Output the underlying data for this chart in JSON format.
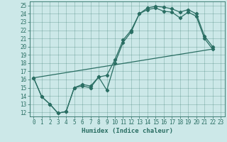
{
  "title": "",
  "xlabel": "Humidex (Indice chaleur)",
  "xlim": [
    -0.5,
    23.5
  ],
  "ylim": [
    11.5,
    25.5
  ],
  "xticks": [
    0,
    1,
    2,
    3,
    4,
    5,
    6,
    7,
    8,
    9,
    10,
    11,
    12,
    13,
    14,
    15,
    16,
    17,
    18,
    19,
    20,
    21,
    22,
    23
  ],
  "yticks": [
    12,
    13,
    14,
    15,
    16,
    17,
    18,
    19,
    20,
    21,
    22,
    23,
    24,
    25
  ],
  "bg_color": "#cce8e8",
  "line_color": "#2a6e63",
  "line1_x": [
    0,
    1,
    2,
    3,
    4,
    5,
    6,
    7,
    8,
    9,
    10,
    11,
    12,
    13,
    14,
    15,
    16,
    17,
    18,
    19,
    20,
    21,
    22
  ],
  "line1_y": [
    16.2,
    13.9,
    13.0,
    11.9,
    12.1,
    15.0,
    15.2,
    15.0,
    16.3,
    14.7,
    18.0,
    20.5,
    21.8,
    24.0,
    24.5,
    24.7,
    24.3,
    24.2,
    23.5,
    24.2,
    23.7,
    21.0,
    19.7
  ],
  "line2_x": [
    0,
    1,
    2,
    3,
    4,
    5,
    6,
    7,
    8,
    9,
    10,
    11,
    12,
    13,
    14,
    15,
    16,
    17,
    18,
    19,
    20,
    21,
    22
  ],
  "line2_y": [
    16.2,
    13.9,
    13.0,
    11.9,
    12.1,
    15.0,
    15.4,
    15.2,
    16.3,
    16.5,
    18.4,
    20.8,
    22.0,
    24.0,
    24.7,
    24.9,
    24.8,
    24.6,
    24.2,
    24.5,
    24.0,
    21.3,
    20.0
  ],
  "line3_x": [
    0,
    22
  ],
  "line3_y": [
    16.2,
    19.7
  ],
  "tick_fontsize": 5.5,
  "xlabel_fontsize": 6.5
}
